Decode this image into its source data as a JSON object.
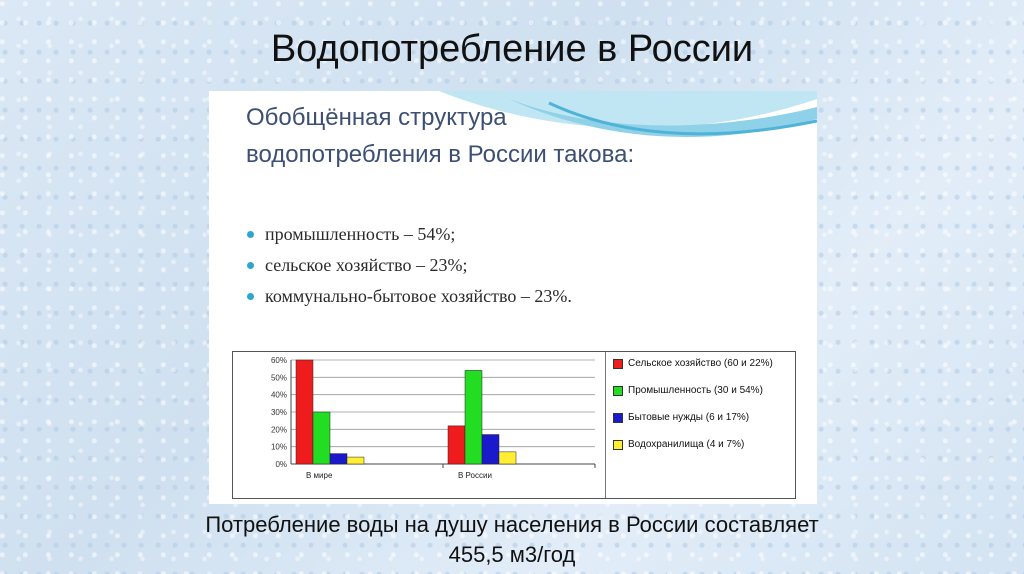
{
  "title": "Водопотребление в России",
  "slide": {
    "heading_line1": "Обобщённая структура",
    "heading_line2": "водопотребления в России такова:",
    "bullets": [
      "промышленность – 54%;",
      "сельское хозяйство – 23%;",
      "коммунально-бытовое хозяйство – 23%."
    ]
  },
  "chart_data": {
    "type": "bar",
    "categories": [
      "В мире",
      "В России"
    ],
    "series": [
      {
        "name": "Сельское хозяйство (60 и 22%)",
        "values": [
          60,
          22
        ],
        "color": "#ee1c1c"
      },
      {
        "name": "Промышленность (30 и 54%)",
        "values": [
          30,
          54
        ],
        "color": "#22dd22"
      },
      {
        "name": "Бытовые нужды (6 и 17%)",
        "values": [
          6,
          17
        ],
        "color": "#1a1acc"
      },
      {
        "name": "Водохранилища (4 и 7%)",
        "values": [
          4,
          7
        ],
        "color": "#ffee33"
      }
    ],
    "yticks": [
      "0%",
      "10%",
      "20%",
      "30%",
      "40%",
      "50%",
      "60%"
    ],
    "ylim": [
      0,
      60
    ],
    "grid": true,
    "legend": "right"
  },
  "caption": {
    "line1": "Потребление воды на душу населения в России составляет",
    "line2": "455,5 м3/год"
  }
}
